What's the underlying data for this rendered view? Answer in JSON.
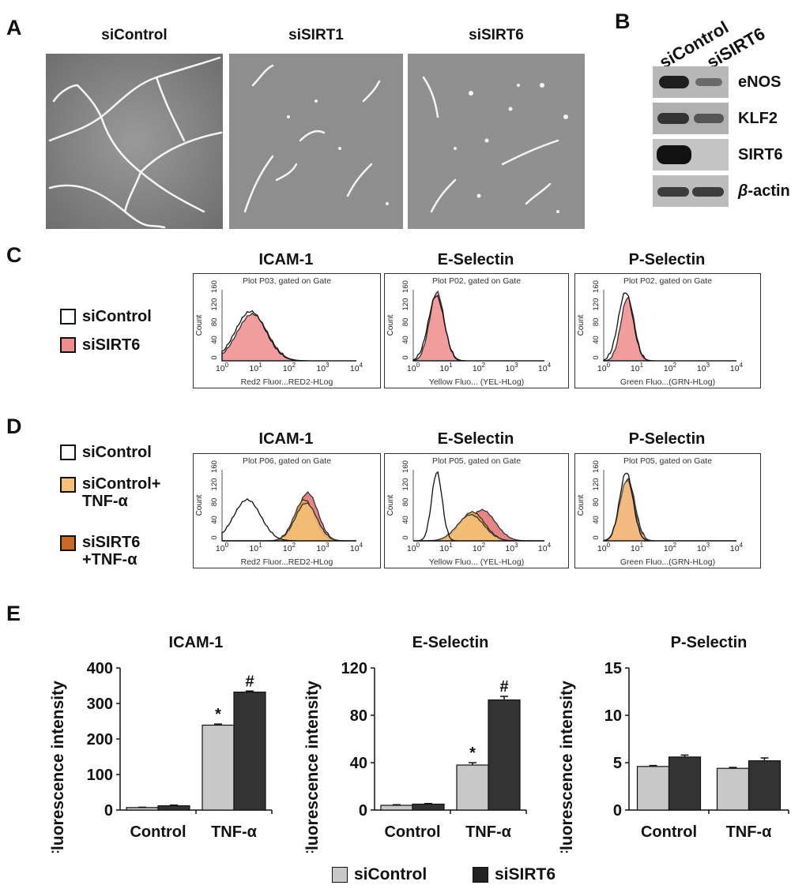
{
  "panel_labels": [
    "A",
    "B",
    "C",
    "D",
    "E"
  ],
  "panelA": {
    "conditions": [
      "siControl",
      "siSIRT1",
      "siSIRT6"
    ]
  },
  "panelB": {
    "lanes": [
      "siControl",
      "siSIRT6"
    ],
    "proteins": [
      {
        "name": "eNOS",
        "intensity": [
          0.85,
          0.35
        ]
      },
      {
        "name": "KLF2",
        "intensity": [
          0.7,
          0.55
        ]
      },
      {
        "name": "SIRT6",
        "intensity": [
          0.95,
          0.0
        ]
      },
      {
        "name": "β-actin",
        "intensity": [
          0.6,
          0.6
        ]
      }
    ],
    "beta_prefix": "β",
    "beta_suffix": "-actin"
  },
  "panelC": {
    "legend": [
      {
        "label": "siControl",
        "color": "#ffffff"
      },
      {
        "label": "siSIRT6",
        "color": "#f08c8c"
      }
    ],
    "plots": [
      {
        "title": "ICAM-1",
        "header": "Plot P03, gated on Gate",
        "axis": "Red2 Fluor...RED2-HLog"
      },
      {
        "title": "E-Selectin",
        "header": "Plot P02, gated on Gate",
        "axis": "Yellow Fluo... (YEL-HLog)"
      },
      {
        "title": "P-Selectin",
        "header": "Plot P02, gated on Gate",
        "axis": "Green Fluo...(GRN-HLog)"
      }
    ]
  },
  "panelD": {
    "legend": [
      {
        "label": "siControl",
        "color": "#ffffff"
      },
      {
        "label": "siControl+\nTNF-α",
        "color": "#f5c07a"
      },
      {
        "label": "siSIRT6\n+TNF-α",
        "color": "#c86a28"
      }
    ],
    "plots": [
      {
        "title": "ICAM-1",
        "header": "Plot P06, gated on Gate",
        "axis": "Red2 Fluor...RED2-HLog"
      },
      {
        "title": "E-Selectin",
        "header": "Plot P05, gated on Gate",
        "axis": "Yellow Fluo... (YEL-HLog)"
      },
      {
        "title": "P-Selectin",
        "header": "Plot P05, gated on Gate",
        "axis": "Green Fluo...(GRN-HLog)"
      }
    ]
  },
  "flow_axes": {
    "ylabel": "Count",
    "yticks": [
      "0",
      "40",
      "80",
      "120",
      "160"
    ],
    "xbase": "10",
    "xexp": [
      "0",
      "1",
      "2",
      "3",
      "4"
    ]
  },
  "chart_data": [
    {
      "type": "bar",
      "title": "ICAM-1",
      "ylabel": "Fluorescence intensity",
      "categories": [
        "Control",
        "TNF-α"
      ],
      "ylim": [
        0,
        400
      ],
      "yticks": [
        "0",
        "100",
        "200",
        "300",
        "400"
      ],
      "series": [
        {
          "name": "siControl",
          "values": [
            7,
            239
          ],
          "errors": [
            1,
            3
          ],
          "color": "#c8c8c8"
        },
        {
          "name": "siSIRT6",
          "values": [
            12,
            332
          ],
          "errors": [
            2,
            3
          ],
          "color": "#333333"
        }
      ],
      "annotations": [
        {
          "series": 0,
          "index": 1,
          "text": "*"
        },
        {
          "series": 1,
          "index": 1,
          "text": "#"
        }
      ]
    },
    {
      "type": "bar",
      "title": "E-Selectin",
      "ylabel": "Fluorescence intensity",
      "categories": [
        "Control",
        "TNF-α"
      ],
      "ylim": [
        0,
        120
      ],
      "yticks": [
        "0",
        "40",
        "80",
        "120"
      ],
      "series": [
        {
          "name": "siControl",
          "values": [
            4,
            38
          ],
          "errors": [
            0.5,
            2
          ],
          "color": "#c8c8c8"
        },
        {
          "name": "siSIRT6",
          "values": [
            5,
            93
          ],
          "errors": [
            0.5,
            3
          ],
          "color": "#333333"
        }
      ],
      "annotations": [
        {
          "series": 0,
          "index": 1,
          "text": "*"
        },
        {
          "series": 1,
          "index": 1,
          "text": "#"
        }
      ]
    },
    {
      "type": "bar",
      "title": "P-Selectin",
      "ylabel": "Fluorescence intensity",
      "categories": [
        "Control",
        "TNF-α"
      ],
      "ylim": [
        0,
        15
      ],
      "yticks": [
        "0",
        "5",
        "10",
        "15"
      ],
      "series": [
        {
          "name": "siControl",
          "values": [
            4.6,
            4.4
          ],
          "errors": [
            0.1,
            0.1
          ],
          "color": "#c8c8c8"
        },
        {
          "name": "siSIRT6",
          "values": [
            5.6,
            5.2
          ],
          "errors": [
            0.2,
            0.3
          ],
          "color": "#333333"
        }
      ],
      "annotations": []
    }
  ],
  "bottom_legend": [
    {
      "label": "siControl",
      "color": "#c8c8c8"
    },
    {
      "label": "siSIRT6",
      "color": "#222222"
    }
  ]
}
